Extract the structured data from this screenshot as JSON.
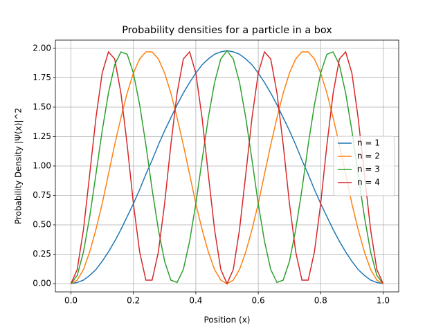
{
  "chart_data": {
    "type": "line",
    "title": "Probability densities for a particle in a box",
    "xlabel": "Position (x)",
    "ylabel": "Probability Density |Ψ(x)|^2",
    "x": [
      0,
      0.02,
      0.04,
      0.06,
      0.08,
      0.1,
      0.12,
      0.14,
      0.16,
      0.18,
      0.2,
      0.22,
      0.24,
      0.26,
      0.28,
      0.3,
      0.32,
      0.34,
      0.36,
      0.38,
      0.4,
      0.42,
      0.44,
      0.46,
      0.48,
      0.5,
      0.52,
      0.54,
      0.56,
      0.58,
      0.6,
      0.62,
      0.64,
      0.66,
      0.68,
      0.7,
      0.72,
      0.74,
      0.76,
      0.78,
      0.8,
      0.82,
      0.84,
      0.86,
      0.88,
      0.9,
      0.92,
      0.94,
      0.96,
      0.98,
      1
    ],
    "series": [
      {
        "name": "n = 1",
        "color": "#1f77b4",
        "values": [
          0,
          0.01,
          0.03,
          0.07,
          0.12,
          0.19,
          0.27,
          0.36,
          0.46,
          0.57,
          0.68,
          0.8,
          0.93,
          1.05,
          1.18,
          1.3,
          1.41,
          1.52,
          1.62,
          1.71,
          1.79,
          1.86,
          1.91,
          1.95,
          1.97,
          1.98,
          1.97,
          1.95,
          1.91,
          1.86,
          1.79,
          1.71,
          1.62,
          1.52,
          1.41,
          1.3,
          1.18,
          1.05,
          0.93,
          0.8,
          0.68,
          0.57,
          0.46,
          0.36,
          0.27,
          0.19,
          0.12,
          0.07,
          0.03,
          0.01,
          0
        ]
      },
      {
        "name": "n = 2",
        "color": "#ff7f0e",
        "values": [
          0,
          0.03,
          0.12,
          0.27,
          0.46,
          0.68,
          0.93,
          1.18,
          1.41,
          1.62,
          1.79,
          1.91,
          1.97,
          1.97,
          1.91,
          1.79,
          1.62,
          1.41,
          1.18,
          0.93,
          0.68,
          0.46,
          0.27,
          0.12,
          0.03,
          0,
          0.03,
          0.12,
          0.27,
          0.46,
          0.68,
          0.93,
          1.18,
          1.41,
          1.62,
          1.79,
          1.91,
          1.97,
          1.97,
          1.91,
          1.79,
          1.62,
          1.41,
          1.18,
          0.93,
          0.68,
          0.46,
          0.27,
          0.12,
          0.03,
          0
        ]
      },
      {
        "name": "n = 3",
        "color": "#2ca02c",
        "values": [
          0,
          0.07,
          0.27,
          0.57,
          0.93,
          1.3,
          1.62,
          1.86,
          1.97,
          1.95,
          1.79,
          1.52,
          1.18,
          0.8,
          0.46,
          0.19,
          0.03,
          0.01,
          0.12,
          0.36,
          0.68,
          1.05,
          1.41,
          1.71,
          1.91,
          1.98,
          1.91,
          1.71,
          1.41,
          1.05,
          0.68,
          0.36,
          0.12,
          0.01,
          0.03,
          0.19,
          0.46,
          0.8,
          1.18,
          1.52,
          1.79,
          1.95,
          1.97,
          1.86,
          1.62,
          1.3,
          0.93,
          0.57,
          0.27,
          0.07,
          0
        ]
      },
      {
        "name": "n = 4",
        "color": "#d62728",
        "values": [
          0,
          0.12,
          0.46,
          0.93,
          1.41,
          1.79,
          1.97,
          1.91,
          1.62,
          1.18,
          0.68,
          0.27,
          0.03,
          0.03,
          0.27,
          0.68,
          1.18,
          1.62,
          1.91,
          1.97,
          1.79,
          1.41,
          0.93,
          0.46,
          0.12,
          0,
          0.12,
          0.46,
          0.93,
          1.41,
          1.79,
          1.97,
          1.91,
          1.62,
          1.18,
          0.68,
          0.27,
          0.03,
          0.03,
          0.27,
          0.68,
          1.18,
          1.62,
          1.91,
          1.97,
          1.79,
          1.41,
          0.93,
          0.46,
          0.12,
          0
        ]
      }
    ],
    "xlim": [
      -0.05,
      1.05
    ],
    "ylim": [
      -0.07,
      2.07
    ],
    "xticks": [
      {
        "value": 0,
        "label": "0.0"
      },
      {
        "value": 0.2,
        "label": "0.2"
      },
      {
        "value": 0.4,
        "label": "0.4"
      },
      {
        "value": 0.6,
        "label": "0.6"
      },
      {
        "value": 0.8,
        "label": "0.8"
      },
      {
        "value": 1,
        "label": "1.0"
      }
    ],
    "yticks": [
      {
        "value": 0,
        "label": "0.00"
      },
      {
        "value": 0.25,
        "label": "0.25"
      },
      {
        "value": 0.5,
        "label": "0.50"
      },
      {
        "value": 0.75,
        "label": "0.75"
      },
      {
        "value": 1,
        "label": "1.00"
      },
      {
        "value": 1.25,
        "label": "1.25"
      },
      {
        "value": 1.5,
        "label": "1.50"
      },
      {
        "value": 1.75,
        "label": "1.75"
      },
      {
        "value": 2,
        "label": "2.00"
      }
    ],
    "grid": true,
    "legend": "center right"
  }
}
